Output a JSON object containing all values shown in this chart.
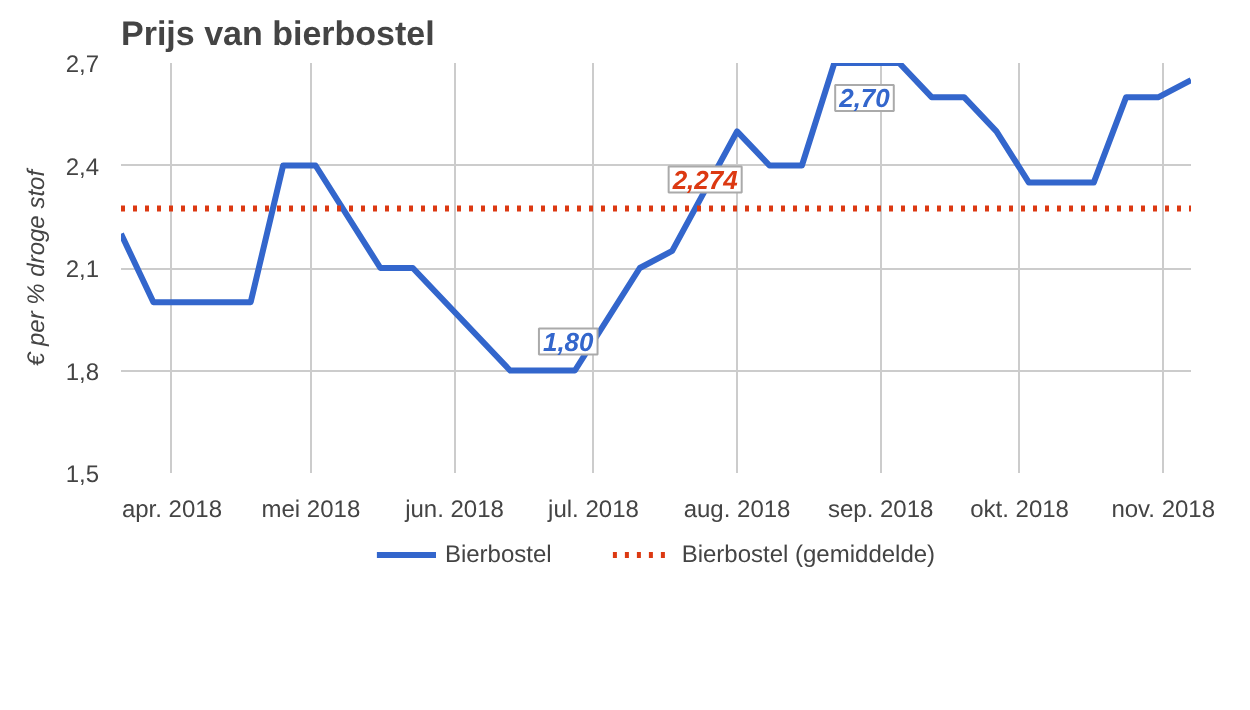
{
  "chart_data": {
    "type": "line",
    "title": "Prijs van bierbostel",
    "ylabel": "€ per % droge stof",
    "x": [
      "2018-03-21",
      "2018-03-28",
      "2018-04-18",
      "2018-04-25",
      "2018-05-02",
      "2018-05-16",
      "2018-05-23",
      "2018-06-13",
      "2018-06-27",
      "2018-07-11",
      "2018-07-18",
      "2018-08-01",
      "2018-08-08",
      "2018-08-15",
      "2018-08-22",
      "2018-09-05",
      "2018-09-12",
      "2018-09-19",
      "2018-09-26",
      "2018-10-03",
      "2018-10-17",
      "2018-10-24",
      "2018-10-31",
      "2018-11-07"
    ],
    "series": [
      {
        "name": "Bierbostel",
        "color": "#3366cc",
        "values": [
          2.2,
          2.0,
          2.0,
          2.4,
          2.4,
          2.1,
          2.1,
          1.8,
          1.8,
          2.1,
          2.15,
          2.5,
          2.4,
          2.4,
          2.7,
          2.7,
          2.6,
          2.6,
          2.5,
          2.35,
          2.35,
          2.6,
          2.6,
          2.65
        ]
      }
    ],
    "ref_lines": [
      {
        "axis": "y",
        "value": 2.274,
        "label": "Bierbostel (gemiddelde)",
        "color": "#dc3912",
        "line_style": "dotted"
      }
    ],
    "annotations": [
      {
        "text": "1,80",
        "x": "2018-06-27",
        "y": 1.8
      },
      {
        "text": "2,70",
        "x": "2018-09-05",
        "y": 2.7
      },
      {
        "text": "2,274",
        "x": "2018-07-25",
        "y": 2.274
      }
    ],
    "xlim": [
      "2018-03-21",
      "2018-11-07"
    ],
    "xticks": [
      {
        "value": "2018-04-01",
        "label": "apr. 2018"
      },
      {
        "value": "2018-05-01",
        "label": "mei 2018"
      },
      {
        "value": "2018-06-01",
        "label": "jun. 2018"
      },
      {
        "value": "2018-07-01",
        "label": "jul. 2018"
      },
      {
        "value": "2018-08-01",
        "label": "aug. 2018"
      },
      {
        "value": "2018-09-01",
        "label": "sep. 2018"
      },
      {
        "value": "2018-10-01",
        "label": "okt. 2018"
      },
      {
        "value": "2018-11-01",
        "label": "nov. 2018"
      }
    ],
    "ylim": [
      1.5,
      2.7
    ],
    "yticks": [
      {
        "value": 1.5,
        "label": "1,5"
      },
      {
        "value": 1.8,
        "label": "1,8"
      },
      {
        "value": 2.1,
        "label": "2,1"
      },
      {
        "value": 2.4,
        "label": "2,4"
      },
      {
        "value": 2.7,
        "label": "2,7"
      }
    ],
    "grid": true,
    "legend": "bottom",
    "marker": "none",
    "line_style": "solid"
  }
}
